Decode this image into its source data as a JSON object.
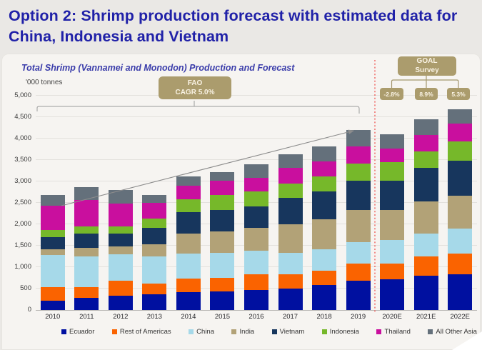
{
  "page": {
    "title": "Option 2: Shrimp production forecast with estimated data for China, Indonesia and Vietnam"
  },
  "chart": {
    "subtitle": "Total Shrimp (Vannamei and Monodon) Production and Forecast",
    "unit_label": "'000 tonnes",
    "fao_box": {
      "line1": "FAO",
      "line2": "CAGR 5.0%"
    },
    "goal_box": {
      "line1": "GOAL",
      "line2": "Survey"
    },
    "goal_values": [
      "-2.8%",
      "8.9%",
      "5.3%"
    ],
    "colors": {
      "callout_khaki": "#ab9c6d",
      "forecast_divider_red": "#ef5350",
      "trend_arrow_gray": "#8c8c8c",
      "title_blue": "#2021a8"
    }
  },
  "chart_data": {
    "type": "bar",
    "stacked": true,
    "title": "Total Shrimp (Vannamei and Monodon) Production and Forecast",
    "ylabel": "'000 tonnes",
    "ylim": [
      0,
      5000
    ],
    "ytick_step": 500,
    "grid": true,
    "legend_position": "bottom",
    "categories": [
      "2010",
      "2011",
      "2012",
      "2013",
      "2014",
      "2015",
      "2016",
      "2017",
      "2018",
      "2019",
      "2020E",
      "2021E",
      "2022E"
    ],
    "series": [
      {
        "name": "Ecuador",
        "color": "#0010a0",
        "values": [
          220,
          280,
          330,
          360,
          420,
          430,
          460,
          500,
          580,
          690,
          720,
          800,
          840
        ]
      },
      {
        "name": "Rest of Americas",
        "color": "#fa6300",
        "values": [
          310,
          250,
          350,
          250,
          310,
          320,
          375,
          335,
          340,
          400,
          370,
          450,
          470
        ]
      },
      {
        "name": "China",
        "color": "#a6d9e9",
        "values": [
          750,
          720,
          620,
          640,
          580,
          580,
          555,
          500,
          500,
          500,
          550,
          530,
          585
        ]
      },
      {
        "name": "India",
        "color": "#b2a277",
        "values": [
          130,
          200,
          190,
          280,
          470,
          500,
          530,
          665,
          690,
          750,
          700,
          750,
          780
        ]
      },
      {
        "name": "Vietnam",
        "color": "#17365d",
        "values": [
          290,
          330,
          300,
          390,
          500,
          500,
          500,
          610,
          660,
          670,
          670,
          780,
          810
        ]
      },
      {
        "name": "Indonesia",
        "color": "#76b82a",
        "values": [
          170,
          170,
          160,
          220,
          310,
          360,
          355,
          335,
          340,
          415,
          440,
          390,
          445
        ]
      },
      {
        "name": "Thailand",
        "color": "#c90f9e",
        "values": [
          560,
          610,
          540,
          360,
          310,
          330,
          315,
          365,
          360,
          385,
          310,
          390,
          420
        ]
      },
      {
        "name": "All Other Asia",
        "color": "#64707b",
        "values": [
          250,
          310,
          310,
          180,
          220,
          200,
          310,
          330,
          340,
          390,
          340,
          360,
          330
        ]
      }
    ],
    "totals": [
      2680,
      2870,
      2800,
      2680,
      3120,
      3220,
      3400,
      3640,
      3810,
      4200,
      4100,
      4450,
      4680
    ],
    "annotations": {
      "fao_cagr": "FAO CAGR 5.0%",
      "fao_bracket_span": [
        "2010",
        "2019"
      ],
      "goal_survey": "GOAL Survey",
      "goal_growth_by_year": {
        "2020E": "-2.8%",
        "2021E": "8.9%",
        "2022E": "5.3%"
      },
      "forecast_divider_between": [
        "2019",
        "2020E"
      ],
      "trend_arrow": "upward from 2010 to 2019 bar top"
    }
  }
}
